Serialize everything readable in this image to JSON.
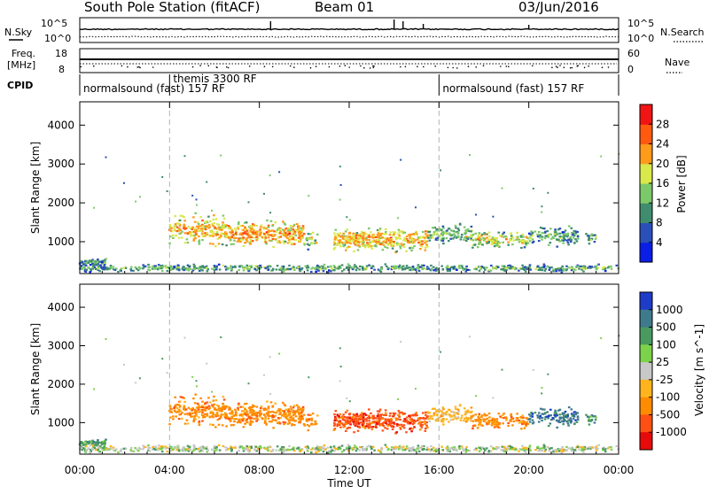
{
  "header": {
    "title": "South Pole Station (fitACF)",
    "beam": "Beam 01",
    "date": "03/Jun/2016"
  },
  "side_labels": {
    "nsky": "N.Sky",
    "nsearch": "N.Search",
    "freq_line1": "Freq.",
    "freq_line2": "[MHz]",
    "nave": "Nave",
    "cpid": "CPID"
  },
  "noise_axis": {
    "left_top": "10^5",
    "left_bottom": "10^0",
    "right_top": "10^5",
    "right_bottom": "10^0"
  },
  "freq_axis": {
    "left_top": "18",
    "left_bottom": "8",
    "right_top": "60",
    "right_bottom": "0"
  },
  "cpid_segments": [
    {
      "label": "normalsound (fast) 157 RF",
      "start_h": 0,
      "end_h": 4
    },
    {
      "label": "themis 3300 RF",
      "start_h": 4,
      "end_h": 16
    },
    {
      "label": "normalsound (fast) 157 RF",
      "start_h": 16,
      "end_h": 24
    }
  ],
  "chart_data": [
    {
      "type": "heatmap",
      "name": "power-panel",
      "xlabel": "",
      "ylabel": "Slant Range [km]",
      "xlim": [
        0,
        24
      ],
      "ylim": [
        180,
        4600
      ],
      "yticks": [
        1000,
        2000,
        3000,
        4000
      ],
      "colorbar": {
        "label": "Power [dB]",
        "ticks": [
          "4",
          "8",
          "12",
          "16",
          "20",
          "24",
          "28"
        ],
        "range": [
          0,
          32
        ],
        "colors": [
          "#0a1ee6",
          "#2a4fb8",
          "#3f8c6e",
          "#7cc96a",
          "#d9e84a",
          "#ff9a1a",
          "#ff5a10",
          "#f01414"
        ]
      }
    },
    {
      "type": "heatmap",
      "name": "velocity-panel",
      "xlabel": "Time UT",
      "ylabel": "Slant Range [km]",
      "xlim": [
        0,
        24
      ],
      "ylim": [
        180,
        4600
      ],
      "yticks": [
        1000,
        2000,
        3000,
        4000
      ],
      "xticks": [
        "00:00",
        "04:00",
        "08:00",
        "12:00",
        "16:00",
        "20:00",
        "00:00"
      ],
      "colorbar": {
        "label": "Velocity [m s^-1]",
        "ticks": [
          "1000",
          "500",
          "100",
          "25",
          "-25",
          "-100",
          "-500",
          "-1000"
        ],
        "colors": [
          "#1e3cc8",
          "#3f7a8c",
          "#4a9a60",
          "#7cd24a",
          "#c8c8c8",
          "#ffb41e",
          "#ff8c00",
          "#ff5014",
          "#e60a0a"
        ]
      }
    }
  ],
  "ui_colors": {
    "dashed_line": "#b4b4b4",
    "scatter_bg": "#ffffff"
  }
}
